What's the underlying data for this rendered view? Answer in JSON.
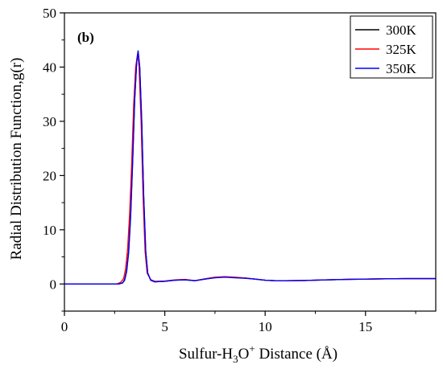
{
  "chart_data": {
    "type": "line",
    "panel_label": "(b)",
    "xlabel": {
      "prefix": "Sulfur-H",
      "sub": "3",
      "mid": "O",
      "sup": "+",
      "suffix": " Distance (Å)"
    },
    "ylabel": "Radial Distribution Function,g(r)",
    "xlim": [
      0,
      18.5
    ],
    "ylim": [
      -5,
      50
    ],
    "xticks": [
      0,
      5,
      10,
      15
    ],
    "yticks": [
      0,
      10,
      20,
      30,
      40,
      50
    ],
    "legend_position": "top-right",
    "grid": false,
    "series": [
      {
        "name": "300K",
        "color": "#000000",
        "x": [
          0,
          2.7,
          2.9,
          3.0,
          3.1,
          3.2,
          3.3,
          3.4,
          3.5,
          3.6,
          3.67,
          3.75,
          3.85,
          3.95,
          4.05,
          4.15,
          4.3,
          4.5,
          5.0,
          5.5,
          6.0,
          6.5,
          7.0,
          7.5,
          8.0,
          8.5,
          9.0,
          9.5,
          10.0,
          10.5,
          11.0,
          12.0,
          13.0,
          14.0,
          15.0,
          16.0,
          17.0,
          18.5
        ],
        "y": [
          0,
          0,
          0.2,
          0.8,
          2.5,
          6,
          13,
          23,
          34,
          41,
          42.8,
          40,
          30,
          16,
          6,
          2,
          0.7,
          0.4,
          0.5,
          0.7,
          0.8,
          0.6,
          0.9,
          1.2,
          1.3,
          1.2,
          1.1,
          0.9,
          0.7,
          0.6,
          0.6,
          0.65,
          0.75,
          0.85,
          0.9,
          0.95,
          1.0,
          1.0
        ]
      },
      {
        "name": "325K",
        "color": "#ff0000",
        "x": [
          0,
          2.6,
          2.8,
          2.95,
          3.05,
          3.15,
          3.25,
          3.35,
          3.45,
          3.55,
          3.65,
          3.72,
          3.82,
          3.92,
          4.02,
          4.12,
          4.3,
          4.5,
          5.0,
          5.5,
          6.0,
          6.5,
          7.0,
          7.5,
          8.0,
          8.5,
          9.0,
          9.5,
          10.0,
          10.5,
          11.0,
          12.0,
          13.0,
          14.0,
          15.0,
          16.0,
          17.0,
          18.5
        ],
        "y": [
          0,
          0,
          0.3,
          1.0,
          2.8,
          6.5,
          13,
          22,
          33,
          40,
          42.5,
          40,
          30,
          16,
          6,
          2,
          0.8,
          0.5,
          0.55,
          0.75,
          0.85,
          0.6,
          0.95,
          1.25,
          1.35,
          1.25,
          1.1,
          0.9,
          0.7,
          0.6,
          0.6,
          0.65,
          0.75,
          0.85,
          0.9,
          0.95,
          1.0,
          1.0
        ]
      },
      {
        "name": "350K",
        "color": "#0000ff",
        "x": [
          0,
          2.7,
          2.9,
          3.0,
          3.1,
          3.2,
          3.3,
          3.4,
          3.5,
          3.6,
          3.67,
          3.75,
          3.85,
          3.95,
          4.05,
          4.15,
          4.3,
          4.5,
          5.0,
          5.5,
          6.0,
          6.5,
          7.0,
          7.5,
          8.0,
          8.5,
          9.0,
          9.5,
          10.0,
          10.5,
          11.0,
          12.0,
          13.0,
          14.0,
          15.0,
          16.0,
          17.0,
          18.5
        ],
        "y": [
          0,
          0,
          0.2,
          0.7,
          2.3,
          5.8,
          12.5,
          22.5,
          34,
          41,
          43,
          40,
          30,
          16,
          6,
          2,
          0.7,
          0.4,
          0.5,
          0.7,
          0.75,
          0.6,
          0.9,
          1.15,
          1.25,
          1.15,
          1.05,
          0.9,
          0.7,
          0.6,
          0.6,
          0.65,
          0.75,
          0.85,
          0.9,
          0.95,
          1.0,
          1.0
        ]
      }
    ]
  }
}
